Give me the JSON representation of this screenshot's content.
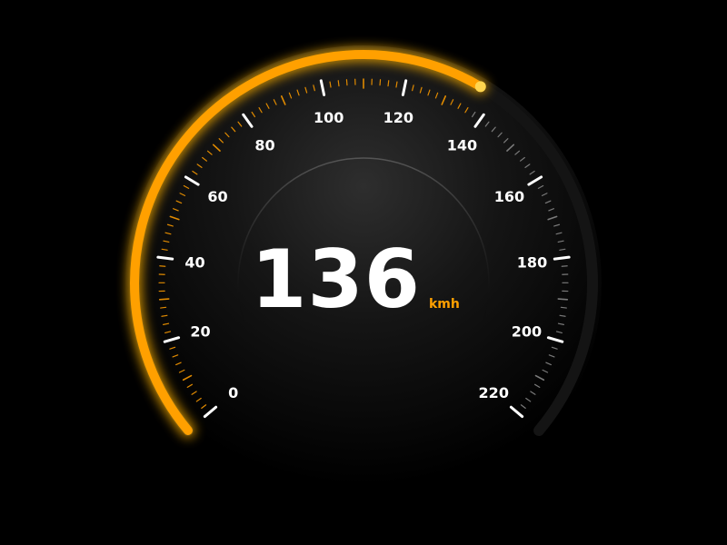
{
  "speedometer": {
    "value": "136",
    "unit": "kmh",
    "speed": 136,
    "min": 0,
    "max": 220,
    "major_ticks": [
      "0",
      "20",
      "40",
      "60",
      "80",
      "100",
      "120",
      "140",
      "160",
      "180",
      "200",
      "220"
    ]
  },
  "colors": {
    "background": "#000000",
    "accent": "#ffa000",
    "accent_glow": "#ffb300",
    "knob": "#ffd54f",
    "track": "#141414",
    "tick_major": "#ffffff",
    "tick_minor_active": "#e08a00",
    "tick_minor_inactive": "#7a7a7a",
    "label": "#ffffff"
  }
}
